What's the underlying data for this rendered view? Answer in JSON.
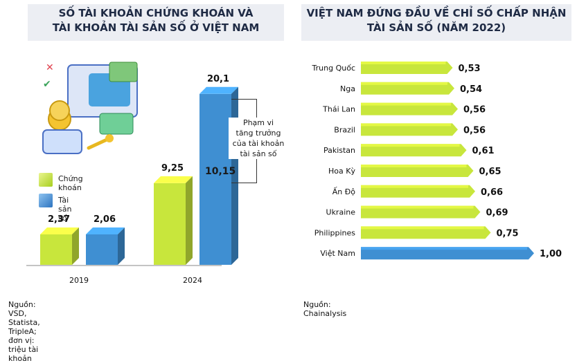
{
  "left": {
    "title_line1": "SỐ TÀI KHOẢN CHỨNG KHOÁN VÀ",
    "title_line2": "TÀI KHOẢN TÀI SẢN SỐ Ở VIỆT NAM",
    "legend": [
      {
        "label": "Chứng khoán",
        "color": "#c8e63c"
      },
      {
        "label": "Tài sản số",
        "color": "#3f8fd2"
      }
    ],
    "annotation_line1": "Phạm vi",
    "annotation_line2": "tăng trưởng",
    "annotation_line3": "của tài khoản",
    "annotation_line4": "tài sản số",
    "annotation_value": "10,15",
    "source": "Nguồn: VSD, Statista, TripleA; đơn vị: triệu tài khoản"
  },
  "right": {
    "title_line1": "VIỆT NAM ĐỨNG ĐẦU VỀ CHỈ SỐ CHẤP NHẬN",
    "title_line2": "TÀI SẢN SỐ (NĂM 2022)",
    "source": "Nguồn: Chainalysis"
  },
  "chart_data": [
    {
      "type": "bar",
      "categories": [
        "2019",
        "2024"
      ],
      "series": [
        {
          "name": "Chứng khoán",
          "values": [
            2.37,
            9.25
          ],
          "labels": [
            "2,37",
            "9,25"
          ],
          "color": "#c8e63c"
        },
        {
          "name": "Tài sản số",
          "values": [
            2.06,
            20.1
          ],
          "labels": [
            "2,06",
            "20,1"
          ],
          "color": "#3f8fd2"
        }
      ]
    },
    {
      "type": "bar",
      "orientation": "horizontal",
      "categories": [
        "Trung Quốc",
        "Nga",
        "Thái Lan",
        "Brazil",
        "Pakistan",
        "Hoa Kỳ",
        "Ấn Độ",
        "Ukraine",
        "Philippines",
        "Việt Nam"
      ],
      "values": [
        0.53,
        0.54,
        0.56,
        0.56,
        0.61,
        0.65,
        0.66,
        0.69,
        0.75,
        1.0
      ],
      "labels": [
        "0,53",
        "0,54",
        "0,56",
        "0,56",
        "0,61",
        "0,65",
        "0,66",
        "0,69",
        "0,75",
        "1,00"
      ],
      "highlight": "Việt Nam",
      "bar_color": "#c8e63c",
      "highlight_color": "#3f8fd2"
    }
  ]
}
